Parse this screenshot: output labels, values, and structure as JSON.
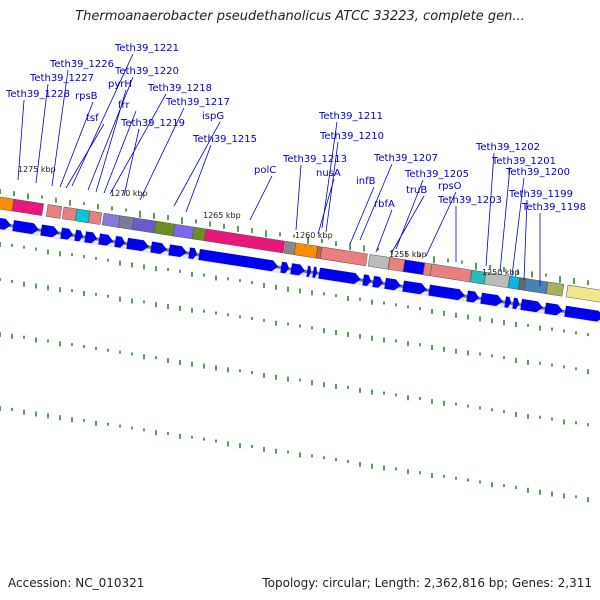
{
  "title": "Thermoanaerobacter pseudethanolicus ATCC 33223, complete gen...",
  "footer": {
    "accession": "Accession: NC_010321",
    "summary": "Topology: circular; Length: 2,362,816 bp; Genes: 2,311"
  },
  "map": {
    "ticks": [
      "1275 kbp",
      "1270 kbp",
      "1265 kbp",
      "1260 kbp",
      "1255 kbp",
      "1250 kbp"
    ],
    "labels": [
      "Teth39_1221",
      "Teth39_1226",
      "Teth39_1220",
      "Teth39_1227",
      "pyrH",
      "Teth39_1228",
      "rpsB",
      "Teth39_1218",
      "frr",
      "Teth39_1217",
      "tsf",
      "ispG",
      "Teth39_1219",
      "Teth39_1215",
      "Teth39_1211",
      "Teth39_1210",
      "Teth39_1213",
      "polC",
      "nusA",
      "Teth39_1207",
      "infB",
      "Teth39_1205",
      "truB",
      "rpsO",
      "rbfA",
      "Teth39_1203",
      "Teth39_1202",
      "Teth39_1201",
      "Teth39_1200",
      "Teth39_1199",
      "Teth39_1198"
    ]
  },
  "colors": {
    "label": "#0000cc",
    "arrow": "#0000ee",
    "ring": "#777777",
    "tick": "#2a8a2a"
  }
}
